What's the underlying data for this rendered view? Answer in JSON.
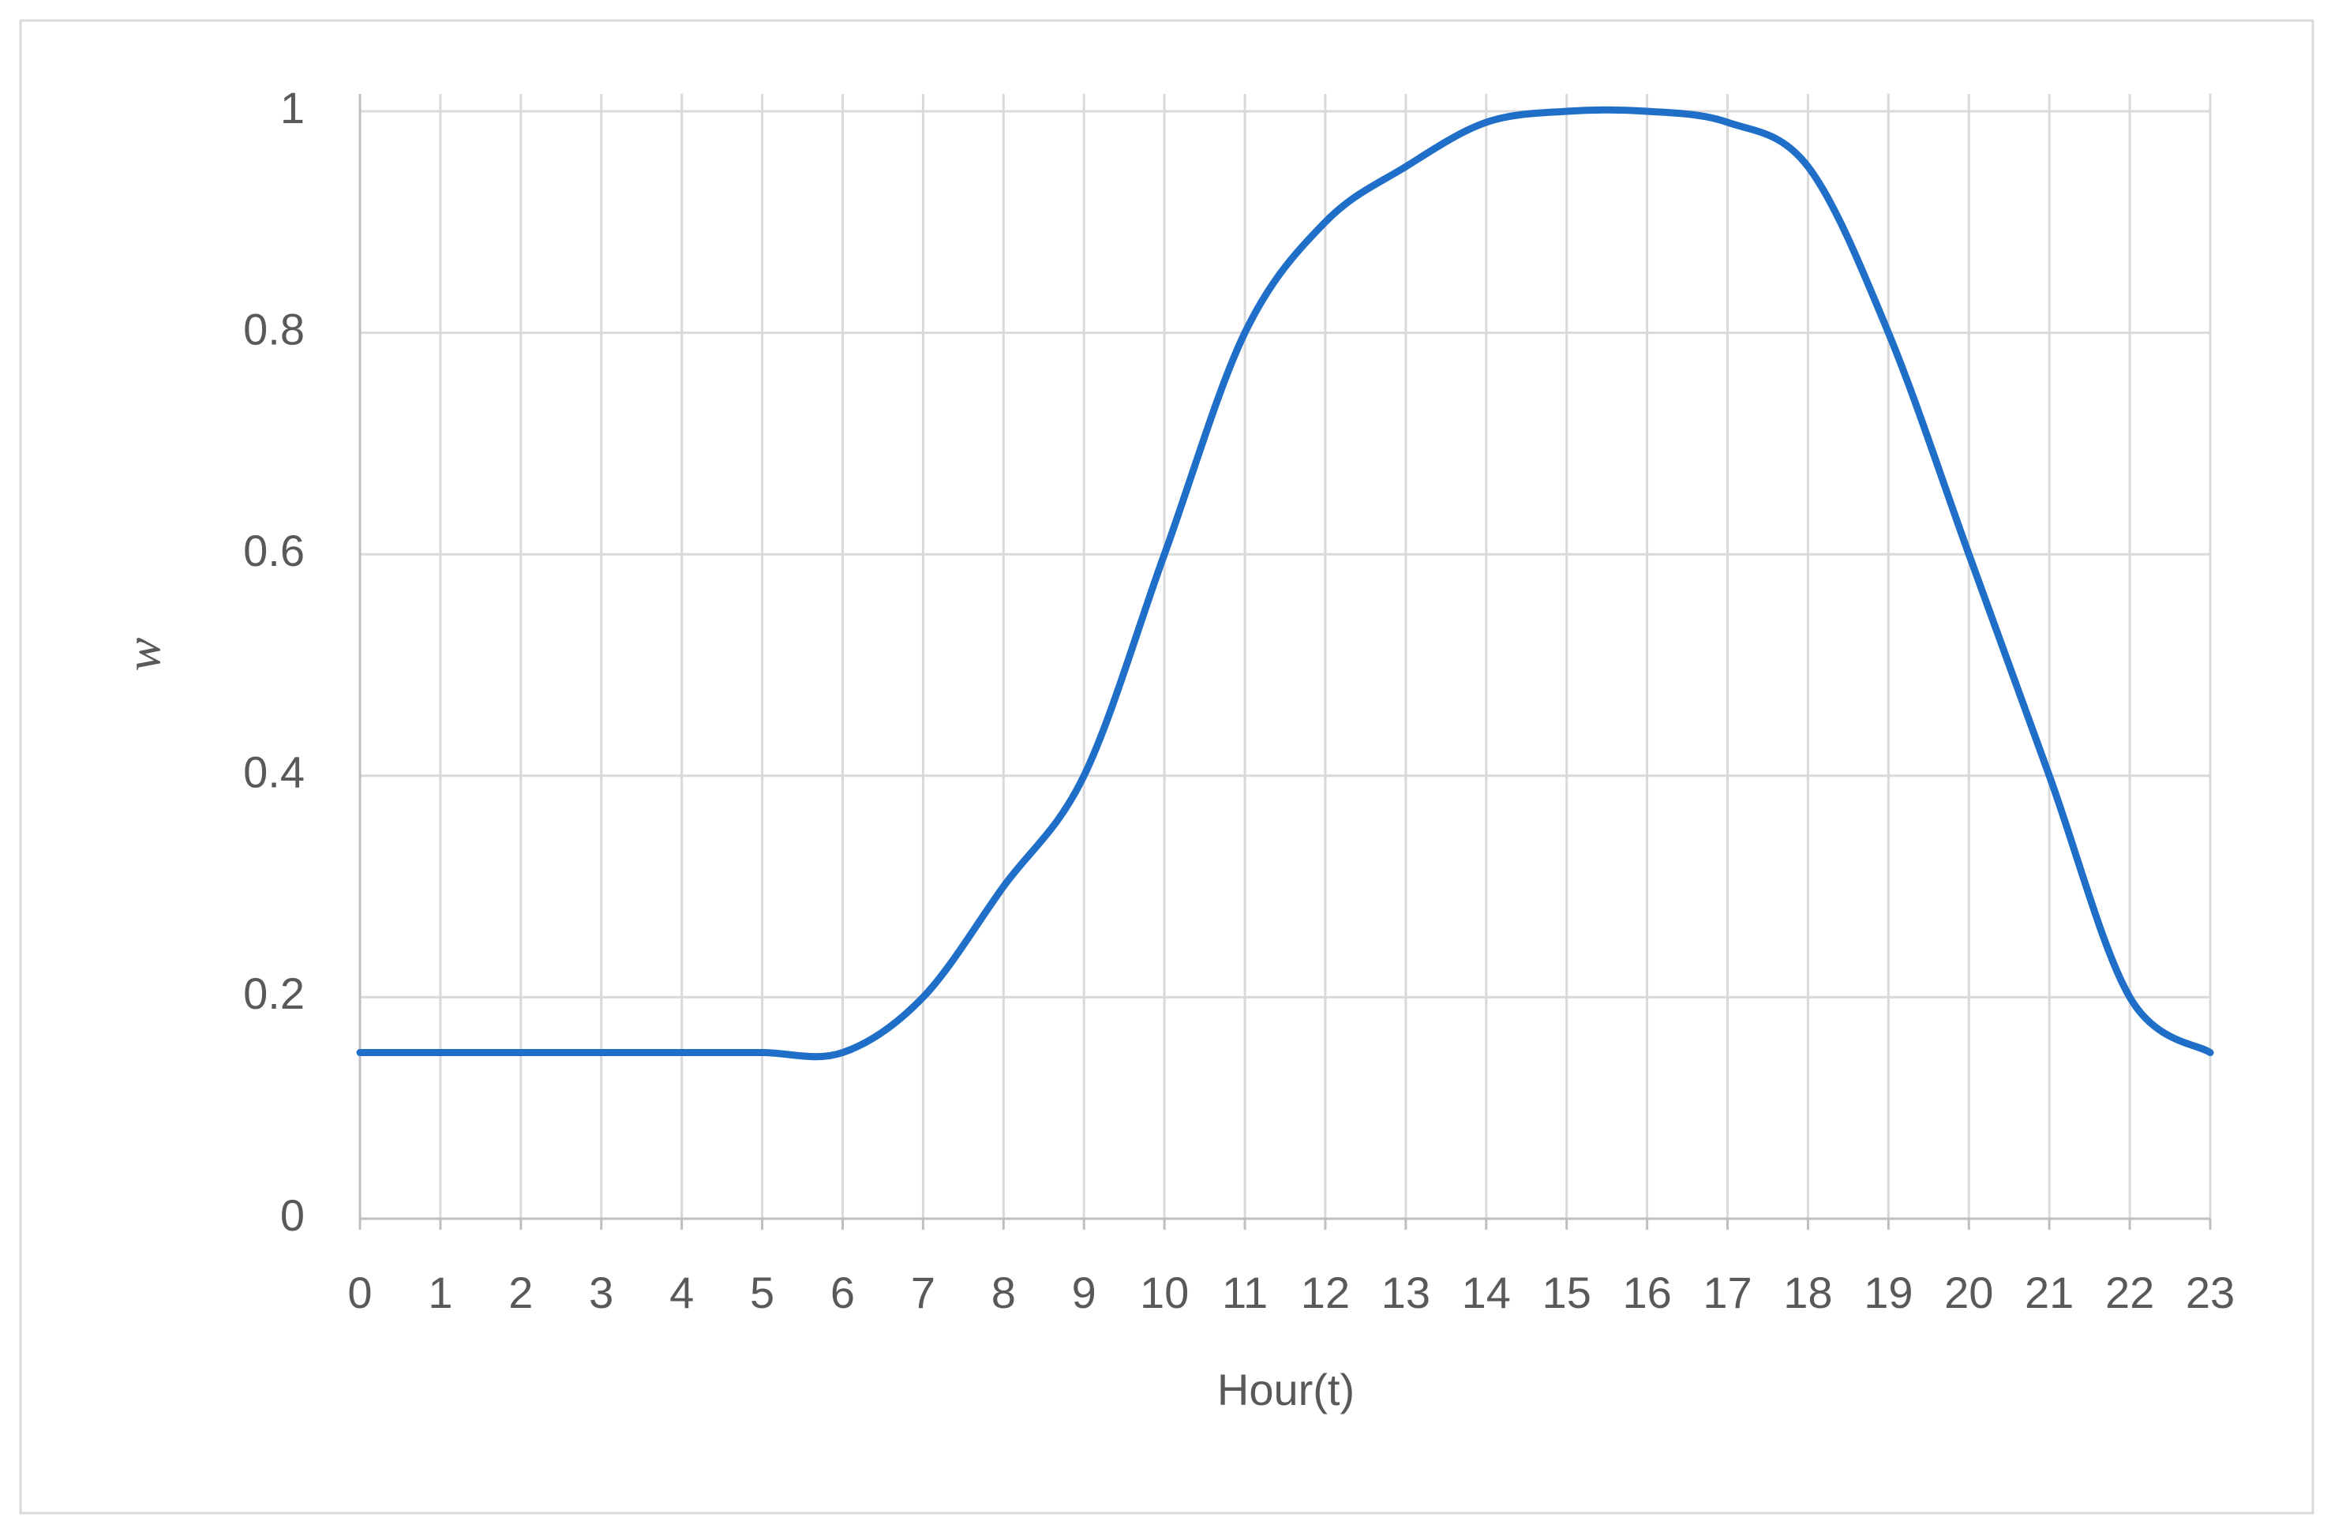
{
  "chart_data": {
    "type": "line",
    "x_label": "Hour(t)",
    "y_label": "w",
    "x": [
      0,
      1,
      2,
      3,
      4,
      5,
      6,
      7,
      8,
      9,
      10,
      11,
      12,
      13,
      14,
      15,
      16,
      17,
      18,
      19,
      20,
      21,
      22,
      23
    ],
    "series": [
      {
        "color": "#1f6fc8",
        "values": [
          0.15,
          0.15,
          0.15,
          0.15,
          0.15,
          0.15,
          0.15,
          0.2,
          0.3,
          0.4,
          0.6,
          0.8,
          0.9,
          0.95,
          0.99,
          1,
          1,
          0.99,
          0.95,
          0.8,
          0.6,
          0.4,
          0.2,
          0.15
        ]
      }
    ],
    "xlim": [
      0,
      23
    ],
    "xticks": [
      0,
      1,
      2,
      3,
      4,
      5,
      6,
      7,
      8,
      9,
      10,
      11,
      12,
      13,
      14,
      15,
      16,
      17,
      18,
      19,
      20,
      21,
      22,
      23
    ],
    "ylim": [
      0,
      1
    ],
    "yticks": [
      0,
      0.2,
      0.4,
      0.6,
      0.8,
      1
    ],
    "grid": true,
    "smooth": true
  }
}
